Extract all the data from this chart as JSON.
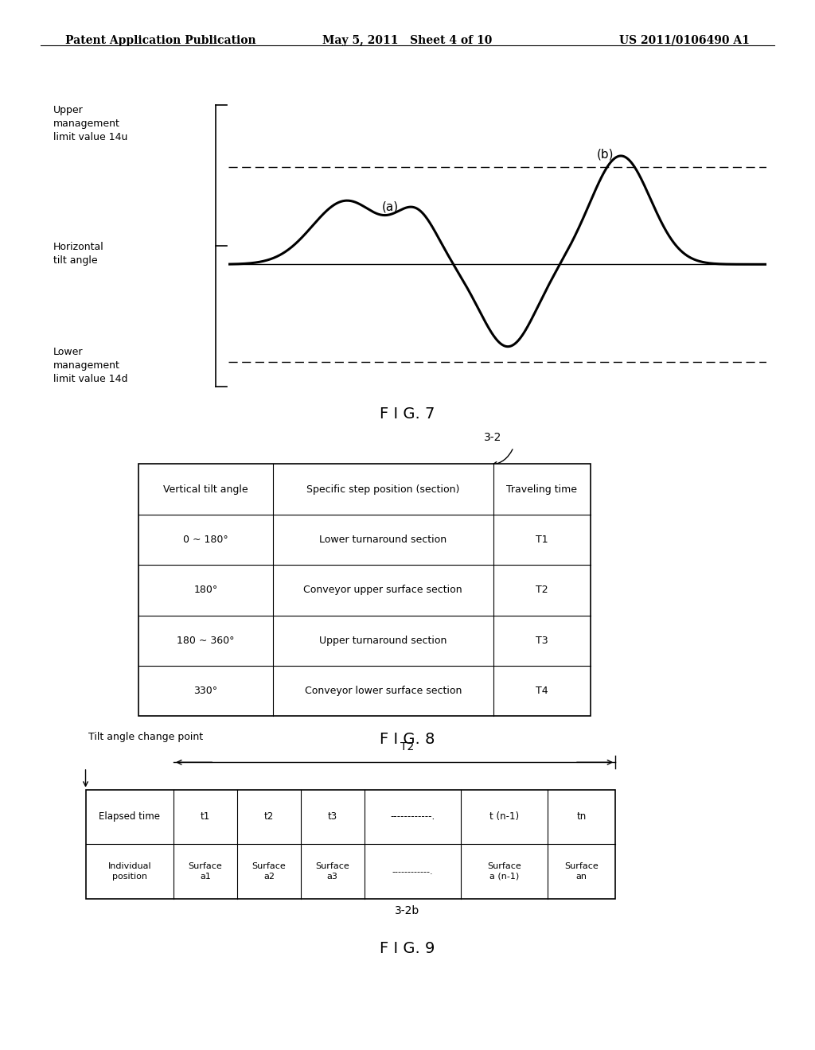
{
  "header_left": "Patent Application Publication",
  "header_mid": "May 5, 2011   Sheet 4 of 10",
  "header_right": "US 2011/0106490 A1",
  "fig7_title": "F I G. 7",
  "fig8_title": "F I G. 8",
  "fig9_title": "F I G. 9",
  "fig8_label": "3-2",
  "fig9_label": "3-2b",
  "upper_label": "Upper\nmanagement\nlimit value 14u",
  "horiz_label": "Horizontal\ntilt angle",
  "lower_label": "Lower\nmanagement\nlimit value 14d",
  "table8_headers": [
    "Vertical tilt angle",
    "Specific step position (section)",
    "Traveling time"
  ],
  "table8_rows": [
    [
      "0 ~ 180°",
      "Lower turnaround section",
      "T1"
    ],
    [
      "180°",
      "Conveyor upper surface section",
      "T2"
    ],
    [
      "180 ~ 360°",
      "Upper turnaround section",
      "T3"
    ],
    [
      "330°",
      "Conveyor lower surface section",
      "T4"
    ]
  ],
  "table9_row1": [
    "Elapsed time",
    "t1",
    "t2",
    "t3",
    "------------.",
    "t (n-1)",
    "tn"
  ],
  "table9_row2": [
    "Individual\nposition",
    "Surface\na1",
    "Surface\na2",
    "Surface\na3",
    "------------.",
    "Surface\na (n-1)",
    "Surface\nan"
  ],
  "bg_color": "#ffffff",
  "line_color": "#000000",
  "text_color": "#000000"
}
